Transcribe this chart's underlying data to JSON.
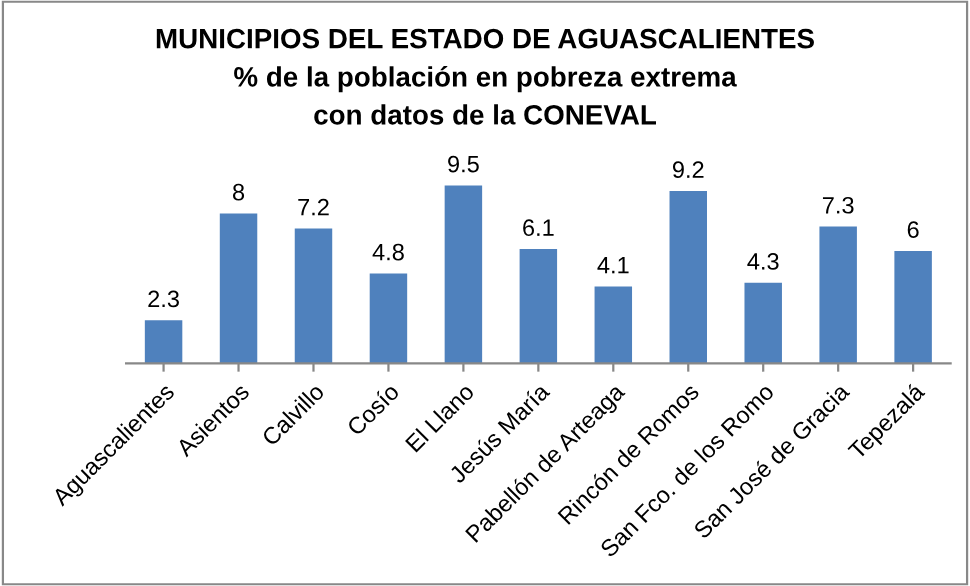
{
  "chart_data": {
    "type": "bar",
    "title": "MUNICIPIOS DEL ESTADO DE AGUASCALIENTES",
    "subtitle": "% de la población en pobreza extrema",
    "annotations": [
      "con datos de la CONEVAL"
    ],
    "categories": [
      "Aguascalientes",
      "Asientos",
      "Calvillo",
      "Cosío",
      "El Llano",
      "Jesús María",
      "Pabellón de Arteaga",
      "Rincón de Romos",
      "San Fco. de los Romo",
      "San José de Gracia",
      "Tepezalá"
    ],
    "values": [
      2.3,
      8,
      7.2,
      4.8,
      9.5,
      6.1,
      4.1,
      9.2,
      4.3,
      7.3,
      6
    ],
    "color": "#4f81bd",
    "data_labels": true,
    "grid": false,
    "legend": false,
    "tick_labels": "x"
  }
}
